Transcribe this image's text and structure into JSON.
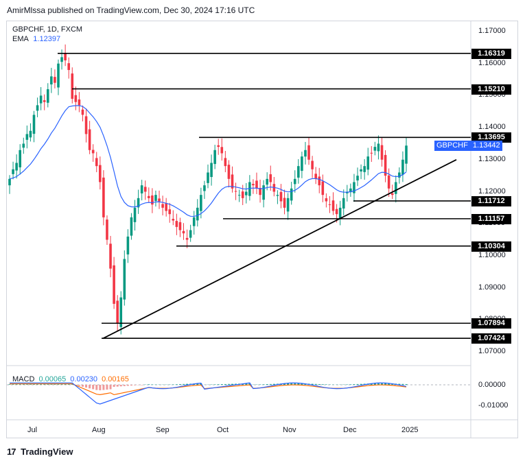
{
  "header": {
    "publisher_line": "AmirMlssa published on TradingView.com, Dec 30, 2024 17:16 UTC"
  },
  "symbol": {
    "title": "GBPCHF, 1D, FXCM",
    "ema_label": "EMA",
    "ema_value": "1.12397"
  },
  "macd": {
    "label": "MACD",
    "v1": "0.00065",
    "v2": "0.00230",
    "v3": "0.00165"
  },
  "price_axis": [
    "1.17000",
    "1.16000",
    "1.15000",
    "1.14000",
    "1.13000",
    "1.12000",
    "1.11000",
    "1.10000",
    "1.09000",
    "1.08000",
    "1.07000"
  ],
  "macd_axis": [
    "0.00000",
    "-0.01000"
  ],
  "levels": [
    "1.16319",
    "1.15210",
    "1.13695",
    "1.11712",
    "1.11157",
    "1.10304",
    "1.07894",
    "1.07424"
  ],
  "current_price": {
    "symbol": "GBPCHF",
    "value": "1.13442"
  },
  "time_axis": [
    "Jul",
    "Aug",
    "Sep",
    "Oct",
    "Nov",
    "Dec",
    "2025"
  ],
  "footer": {
    "brand": "TradingView",
    "logo": "17"
  },
  "colors": {
    "up": "#089981",
    "down": "#f23645",
    "ema": "#2962ff",
    "macd_line": "#2962ff",
    "signal_line": "#ff6d00",
    "level_line": "#000000"
  },
  "chart_data": {
    "type": "candlestick",
    "title": "GBPCHF, 1D, FXCM",
    "ylim": [
      1.0665,
      1.1745
    ],
    "y_scale": "linear",
    "horizontal_levels": [
      1.16319,
      1.1521,
      1.13695,
      1.11712,
      1.11157,
      1.10304,
      1.07894,
      1.07424
    ],
    "trendline": {
      "from": {
        "date": "2024-08-05",
        "price": 1.0742
      },
      "to": {
        "date": "2025-01-20",
        "price": 1.13
      }
    },
    "ema": {
      "period_label": "EMA",
      "last": 1.12397
    },
    "last_close": 1.13442,
    "close_series": [
      1.124,
      1.127,
      1.129,
      1.133,
      1.135,
      1.138,
      1.139,
      1.144,
      1.147,
      1.15,
      1.148,
      1.152,
      1.156,
      1.154,
      1.16,
      1.162,
      1.161,
      1.158,
      1.149,
      1.148,
      1.147,
      1.144,
      1.138,
      1.133,
      1.132,
      1.128,
      1.123,
      1.112,
      1.105,
      1.096,
      1.085,
      1.079,
      1.087,
      1.099,
      1.106,
      1.112,
      1.115,
      1.118,
      1.122,
      1.12,
      1.118,
      1.116,
      1.119,
      1.117,
      1.115,
      1.114,
      1.113,
      1.111,
      1.109,
      1.108,
      1.107,
      1.105,
      1.108,
      1.112,
      1.115,
      1.119,
      1.122,
      1.126,
      1.129,
      1.133,
      1.134,
      1.132,
      1.128,
      1.124,
      1.121,
      1.12,
      1.119,
      1.118,
      1.12,
      1.123,
      1.122,
      1.121,
      1.119,
      1.122,
      1.124,
      1.123,
      1.12,
      1.119,
      1.117,
      1.115,
      1.118,
      1.121,
      1.124,
      1.128,
      1.131,
      1.133,
      1.13,
      1.127,
      1.124,
      1.122,
      1.119,
      1.117,
      1.116,
      1.114,
      1.113,
      1.115,
      1.118,
      1.12,
      1.121,
      1.123,
      1.125,
      1.127,
      1.128,
      1.131,
      1.132,
      1.134,
      1.135,
      1.13,
      1.125,
      1.121,
      1.119,
      1.123,
      1.126,
      1.13,
      1.1344
    ]
  }
}
